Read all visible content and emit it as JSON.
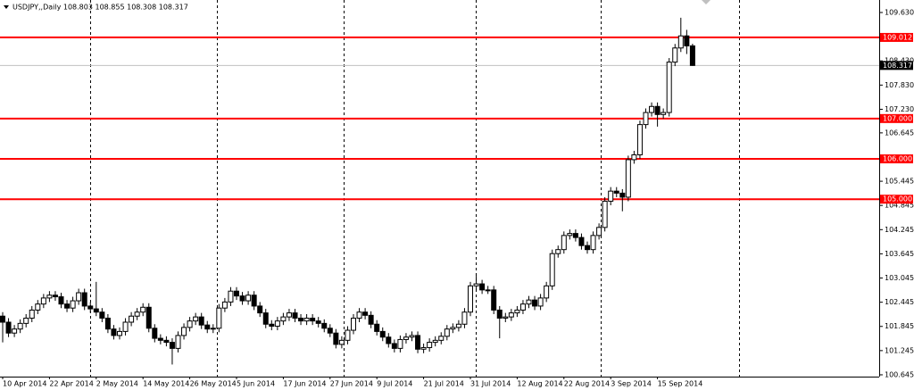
{
  "chart_data": {
    "type": "candlestick",
    "title": "USDJPY,,Daily  108.803 108.855 108.308 108.317",
    "categories": [
      "10 Apr 2014",
      null,
      null,
      null,
      null,
      null,
      null,
      null,
      "22 Apr 2014",
      null,
      null,
      null,
      null,
      null,
      null,
      null,
      "2 May 2014",
      null,
      null,
      null,
      null,
      null,
      null,
      null,
      "14 May 2014",
      null,
      null,
      null,
      null,
      null,
      null,
      null,
      "26 May 2014",
      null,
      null,
      null,
      null,
      null,
      null,
      null,
      "5 Jun 2014",
      null,
      null,
      null,
      null,
      null,
      null,
      null,
      "17 Jun 2014",
      null,
      null,
      null,
      null,
      null,
      null,
      null,
      "27 Jun 2014",
      null,
      null,
      null,
      null,
      null,
      null,
      null,
      "9 Jul 2014",
      null,
      null,
      null,
      null,
      null,
      null,
      null,
      "21 Jul 2014",
      null,
      null,
      null,
      null,
      null,
      null,
      null,
      "31 Jul 2014",
      null,
      null,
      null,
      null,
      null,
      null,
      null,
      "12 Aug 2014",
      null,
      null,
      null,
      null,
      null,
      null,
      null,
      "22 Aug 2014",
      null,
      null,
      null,
      null,
      null,
      null,
      null,
      "3 Sep 2014",
      null,
      null,
      null,
      null,
      null,
      null,
      null,
      "15 Sep 2014",
      null,
      null,
      null,
      null,
      null,
      null
    ],
    "open": [
      102.1,
      101.95,
      101.68,
      101.78,
      101.92,
      102.05,
      102.25,
      102.4,
      102.55,
      102.62,
      102.58,
      102.4,
      102.3,
      102.48,
      102.68,
      102.35,
      102.28,
      102.2,
      102.05,
      101.78,
      101.62,
      101.72,
      101.95,
      102.1,
      102.2,
      102.32,
      101.8,
      101.55,
      101.5,
      101.45,
      101.3,
      101.62,
      101.82,
      101.98,
      102.08,
      101.88,
      101.78,
      101.8,
      102.3,
      102.45,
      102.72,
      102.6,
      102.48,
      102.62,
      102.35,
      102.18,
      101.9,
      101.85,
      101.98,
      102.08,
      102.18,
      102.05,
      101.98,
      102.05,
      101.98,
      101.92,
      101.8,
      101.68,
      101.4,
      101.5,
      101.75,
      102.05,
      102.2,
      102.12,
      101.9,
      101.72,
      101.58,
      101.42,
      101.3,
      101.52,
      101.58,
      101.62,
      101.28,
      101.32,
      101.45,
      101.5,
      101.6,
      101.78,
      101.82,
      101.9,
      102.2,
      102.85,
      102.9,
      102.75,
      102.75,
      102.25,
      102.05,
      102.08,
      102.18,
      102.25,
      102.4,
      102.5,
      102.35,
      102.55,
      102.85,
      103.65,
      103.75,
      104.1,
      104.15,
      104.05,
      103.85,
      103.75,
      104.1,
      104.3,
      104.95,
      105.2,
      105.15,
      105.05,
      105.98,
      106.1,
      106.85,
      107.15,
      107.3,
      107.1,
      107.15,
      108.4,
      108.75,
      109.05,
      108.803
    ],
    "high": [
      102.2,
      102.05,
      101.88,
      102.02,
      102.15,
      102.35,
      102.5,
      102.65,
      102.72,
      102.72,
      102.68,
      102.5,
      102.58,
      102.78,
      102.78,
      102.45,
      102.95,
      102.3,
      102.15,
      101.88,
      101.82,
      102.05,
      102.2,
      102.3,
      102.42,
      102.42,
      101.9,
      101.65,
      101.6,
      101.55,
      101.72,
      101.92,
      102.08,
      102.18,
      102.18,
      101.98,
      101.9,
      102.4,
      102.55,
      102.82,
      102.82,
      102.7,
      102.72,
      102.72,
      102.45,
      102.28,
      102.0,
      102.08,
      102.18,
      102.28,
      102.28,
      102.15,
      102.15,
      102.15,
      102.08,
      102.02,
      101.9,
      101.78,
      101.6,
      101.85,
      102.15,
      102.3,
      102.3,
      102.22,
      102.0,
      101.82,
      101.68,
      101.52,
      101.62,
      101.68,
      101.72,
      101.72,
      101.42,
      101.55,
      101.6,
      101.7,
      101.88,
      101.92,
      102.0,
      102.3,
      102.95,
      103.1,
      103.0,
      102.85,
      102.85,
      102.35,
      102.18,
      102.28,
      102.35,
      102.5,
      102.6,
      102.6,
      102.65,
      102.95,
      103.75,
      103.85,
      104.2,
      104.25,
      104.25,
      104.15,
      103.95,
      104.2,
      104.4,
      105.05,
      105.3,
      105.3,
      105.25,
      106.08,
      106.2,
      106.95,
      107.25,
      107.4,
      107.4,
      107.25,
      108.5,
      108.85,
      109.5,
      109.2,
      108.855
    ],
    "low": [
      101.45,
      101.58,
      101.58,
      101.68,
      101.82,
      101.95,
      102.15,
      102.3,
      102.45,
      102.48,
      102.3,
      102.2,
      102.2,
      102.38,
      102.25,
      102.18,
      102.1,
      101.95,
      101.68,
      101.52,
      101.52,
      101.62,
      101.85,
      102.0,
      102.1,
      101.7,
      101.45,
      101.4,
      101.35,
      100.9,
      101.2,
      101.52,
      101.72,
      101.88,
      101.78,
      101.68,
      101.68,
      101.7,
      102.2,
      102.35,
      102.5,
      102.38,
      102.38,
      102.25,
      102.08,
      101.8,
      101.75,
      101.75,
      101.88,
      101.98,
      101.95,
      101.88,
      101.88,
      101.88,
      101.82,
      101.7,
      101.58,
      101.3,
      101.3,
      101.4,
      101.65,
      101.95,
      102.02,
      101.8,
      101.62,
      101.48,
      101.32,
      101.2,
      101.2,
      101.42,
      101.48,
      101.18,
      101.18,
      101.22,
      101.35,
      101.4,
      101.5,
      101.68,
      101.72,
      101.8,
      102.1,
      102.75,
      102.65,
      102.65,
      102.15,
      101.55,
      101.95,
      101.98,
      102.08,
      102.15,
      102.3,
      102.25,
      102.25,
      102.45,
      102.75,
      103.55,
      103.65,
      104.0,
      103.95,
      103.75,
      103.65,
      103.65,
      104.0,
      104.2,
      104.85,
      105.05,
      104.7,
      104.95,
      105.88,
      106.0,
      106.75,
      107.05,
      106.8,
      107.0,
      107.05,
      108.3,
      108.65,
      108.6,
      108.308
    ],
    "close": [
      101.95,
      101.68,
      101.78,
      101.92,
      102.05,
      102.25,
      102.4,
      102.55,
      102.62,
      102.58,
      102.4,
      102.3,
      102.48,
      102.68,
      102.35,
      102.28,
      102.2,
      102.05,
      101.78,
      101.62,
      101.72,
      101.95,
      102.1,
      102.2,
      102.32,
      101.8,
      101.55,
      101.5,
      101.45,
      101.3,
      101.62,
      101.82,
      101.98,
      102.08,
      101.88,
      101.78,
      101.8,
      102.3,
      102.45,
      102.72,
      102.6,
      102.48,
      102.62,
      102.35,
      102.18,
      101.9,
      101.85,
      101.98,
      102.08,
      102.18,
      102.05,
      101.98,
      102.05,
      101.98,
      101.92,
      101.8,
      101.68,
      101.4,
      101.5,
      101.75,
      102.05,
      102.2,
      102.12,
      101.9,
      101.72,
      101.58,
      101.42,
      101.3,
      101.52,
      101.58,
      101.62,
      101.28,
      101.32,
      101.45,
      101.5,
      101.6,
      101.78,
      101.82,
      101.9,
      102.2,
      102.85,
      102.9,
      102.75,
      102.75,
      102.25,
      102.05,
      102.08,
      102.18,
      102.25,
      102.4,
      102.5,
      102.35,
      102.55,
      102.85,
      103.65,
      103.75,
      104.1,
      104.15,
      104.05,
      103.85,
      103.75,
      104.1,
      104.3,
      104.95,
      105.2,
      105.15,
      105.05,
      105.98,
      106.1,
      106.85,
      107.15,
      107.3,
      107.1,
      107.15,
      108.4,
      108.75,
      109.05,
      108.803,
      108.317
    ],
    "up_color": "#ffffff",
    "down_color": "#000000",
    "wick_color": "#000000",
    "ylim": [
      100.6,
      109.94
    ],
    "yticks": [
      {
        "value": 109.63,
        "label": "109.630"
      },
      {
        "value": 108.43,
        "label": "108.430"
      },
      {
        "value": 107.83,
        "label": "107.830"
      },
      {
        "value": 107.23,
        "label": "107.230"
      },
      106.645,
      {
        "value": 105.445,
        "label": "105.445"
      },
      104.845,
      104.245,
      103.645,
      103.045,
      102.445,
      101.845,
      101.245,
      100.645
    ],
    "hlines": [
      {
        "value": 109.012,
        "label": "109.012",
        "color": "#ff0000"
      },
      {
        "value": 107.0,
        "label": "107.000",
        "color": "#ff0000"
      },
      {
        "value": 106.0,
        "label": "106.000",
        "color": "#ff0000"
      },
      {
        "value": 105.0,
        "label": "105.000",
        "color": "#ff0000"
      }
    ],
    "current_price": {
      "value": 108.317,
      "label": "108.317",
      "color": "#c0c0c0"
    }
  }
}
